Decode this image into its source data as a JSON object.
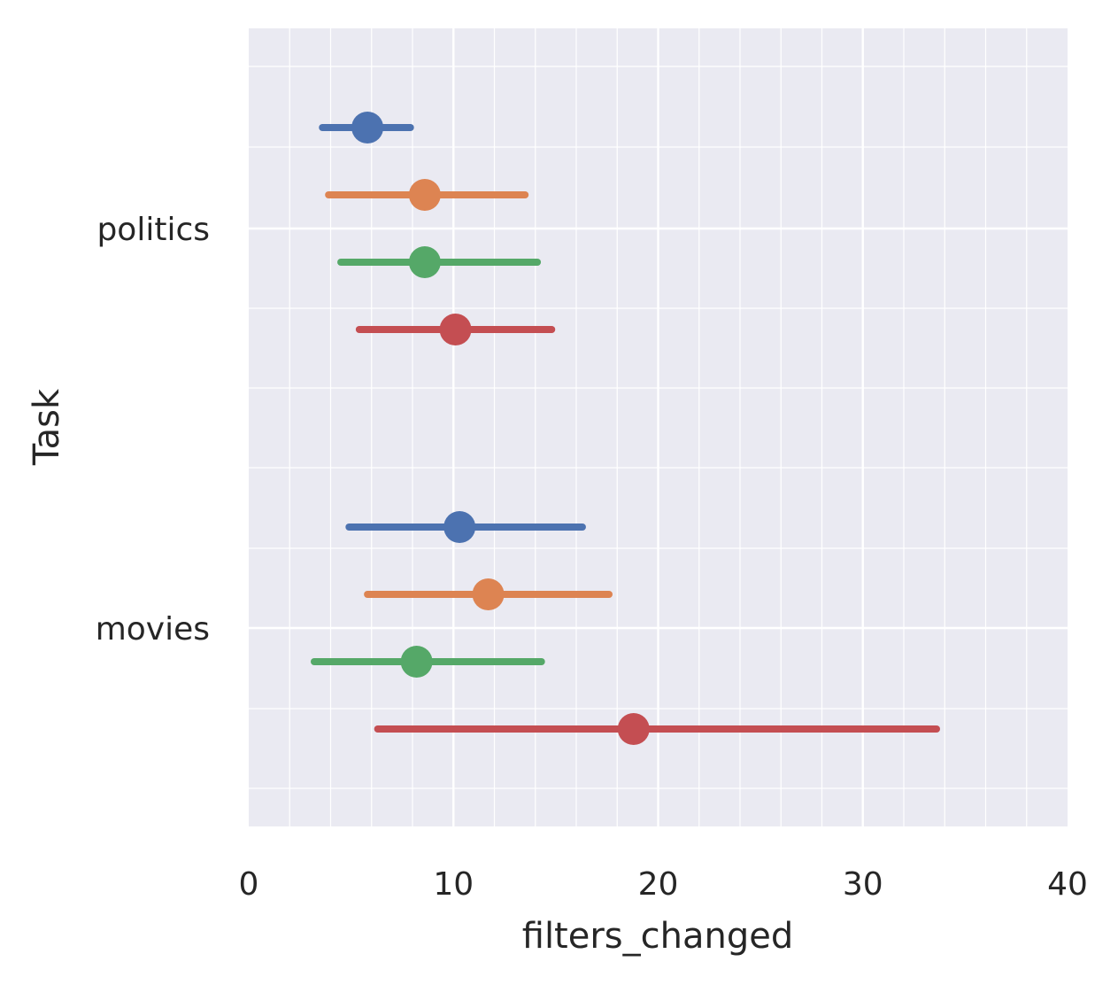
{
  "chart_data": {
    "type": "pointplot",
    "orientation": "horizontal",
    "xlabel": "filters_changed",
    "ylabel": "Task",
    "xlim": [
      0,
      40
    ],
    "x_ticks": [
      "0",
      "10",
      "20",
      "30",
      "40"
    ],
    "x_minor_step": 2,
    "categories": [
      "politics",
      "movies"
    ],
    "grid": true,
    "legend": "none",
    "background": "#EAEAF2",
    "series": [
      {
        "color": "#4C72B0",
        "points": [
          {
            "category": "politics",
            "mean": 5.8,
            "low": 3.6,
            "high": 7.9
          },
          {
            "category": "movies",
            "mean": 10.3,
            "low": 4.9,
            "high": 16.3
          }
        ]
      },
      {
        "color": "#DD8452",
        "points": [
          {
            "category": "politics",
            "mean": 8.6,
            "low": 3.9,
            "high": 13.5
          },
          {
            "category": "movies",
            "mean": 11.7,
            "low": 5.8,
            "high": 17.6
          }
        ]
      },
      {
        "color": "#55A868",
        "points": [
          {
            "category": "politics",
            "mean": 8.6,
            "low": 4.5,
            "high": 14.1
          },
          {
            "category": "movies",
            "mean": 8.2,
            "low": 3.2,
            "high": 14.3
          }
        ]
      },
      {
        "color": "#C44E52",
        "points": [
          {
            "category": "politics",
            "mean": 10.1,
            "low": 5.4,
            "high": 14.8
          },
          {
            "category": "movies",
            "mean": 18.8,
            "low": 6.3,
            "high": 33.6
          }
        ]
      }
    ]
  }
}
